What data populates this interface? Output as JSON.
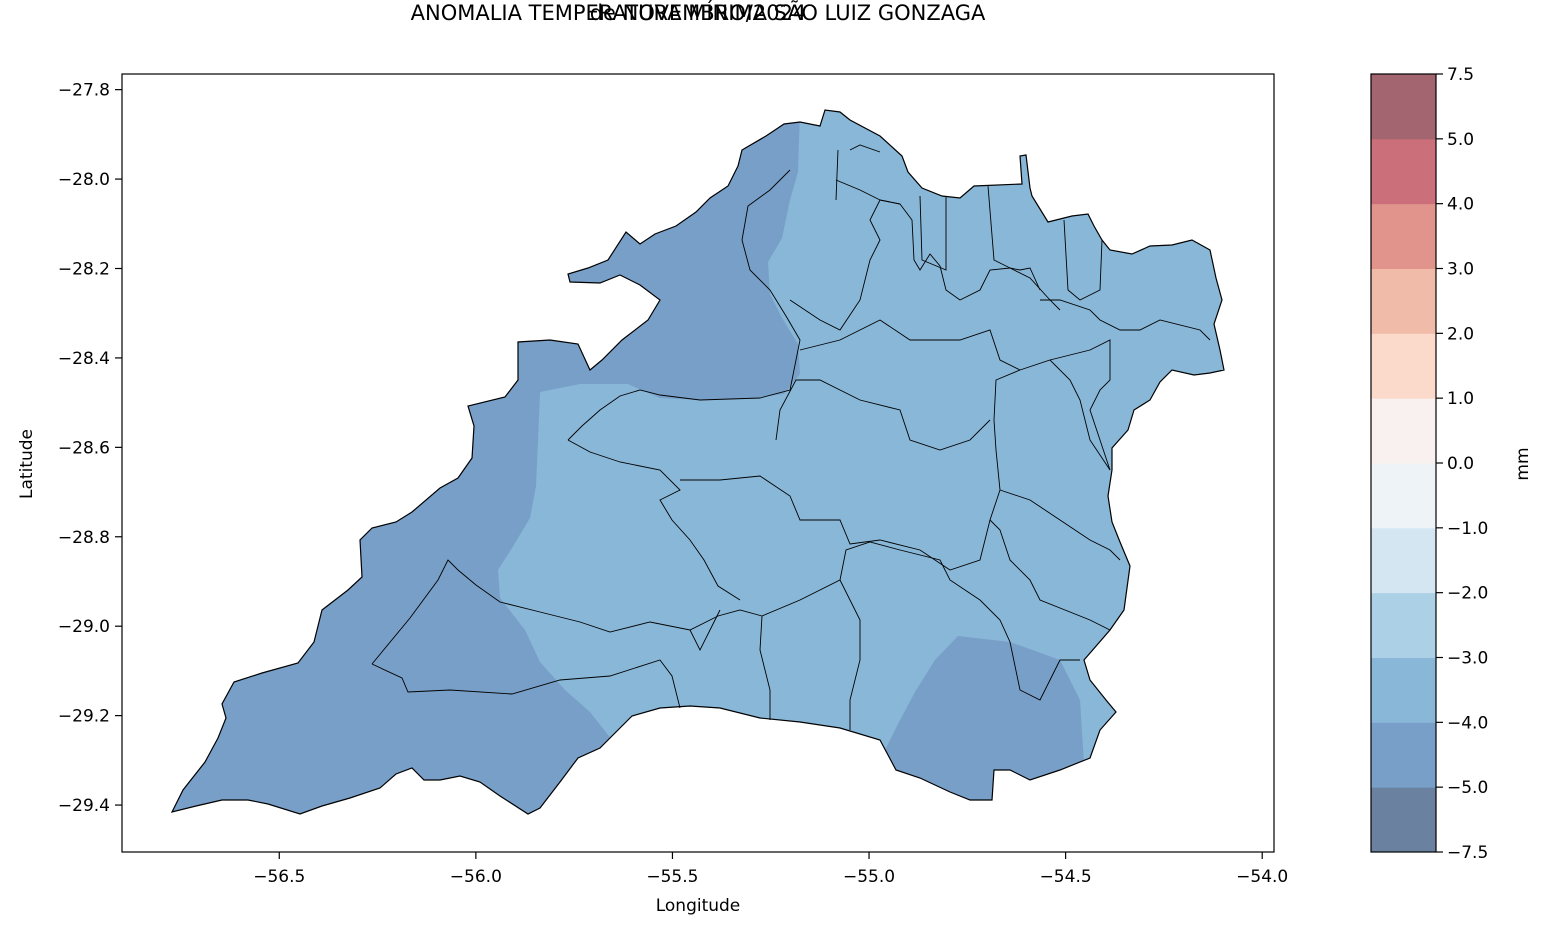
{
  "title": {
    "line1": "ANOMALIA TEMPERATURA MÍNIMA SÃO LUIZ GONZAGA",
    "line2": "de NOVEMBRO/2024"
  },
  "axes": {
    "xlabel": "Longitude",
    "ylabel": "Latitude",
    "xlim": [
      -56.9,
      -53.97
    ],
    "ylim": [
      -29.505,
      -27.765
    ],
    "xticks": [
      -56.5,
      -56.0,
      -55.5,
      -55.0,
      -54.5,
      -54.0
    ],
    "xtick_labels": [
      "−56.5",
      "−56.0",
      "−55.5",
      "−55.0",
      "−54.5",
      "−54.0"
    ],
    "yticks": [
      -27.8,
      -28.0,
      -28.2,
      -28.4,
      -28.6,
      -28.8,
      -29.0,
      -29.2,
      -29.4
    ],
    "ytick_labels": [
      "−27.8",
      "−28.0",
      "−28.2",
      "−28.4",
      "−28.6",
      "−28.8",
      "−29.0",
      "−29.2",
      "−29.4"
    ]
  },
  "colorbar": {
    "label": "mm",
    "levels": [
      -7.5,
      -5.0,
      -4.0,
      -3.0,
      -2.0,
      -1.0,
      0.0,
      1.0,
      2.0,
      3.0,
      4.0,
      5.0,
      7.5
    ],
    "level_labels": [
      "−7.5",
      "−5.0",
      "−4.0",
      "−3.0",
      "−2.0",
      "−1.0",
      "0.0",
      "1.0",
      "2.0",
      "3.0",
      "4.0",
      "5.0",
      "7.5"
    ],
    "colors": [
      "#6a819f",
      "#789fc7",
      "#89b7d8",
      "#acd0e6",
      "#d3e6f1",
      "#eef3f7",
      "#f9f1ef",
      "#fbdacc",
      "#f0bba8",
      "#e0948b",
      "#cb6f7a",
      "#a3656f"
    ]
  },
  "regions": {
    "cold_anomaly_color": "#789fc7",
    "mild_anomaly_color": "#89b7d8",
    "border_color": "#000000"
  }
}
